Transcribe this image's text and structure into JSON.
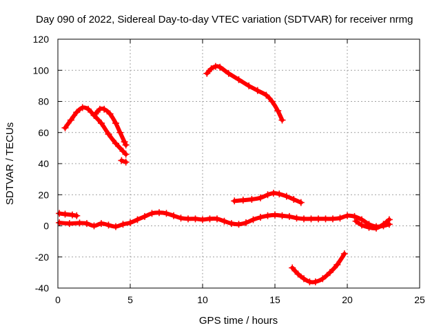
{
  "chart_data": {
    "type": "scatter",
    "title": "Day 090 of 2022, Sidereal Day-to-day VTEC variation (SDTVAR) for receiver nrmg",
    "xlabel": "GPS time / hours",
    "ylabel": "SDTVAR / TECUs",
    "xlim": [
      0,
      25
    ],
    "ylim": [
      -40,
      120
    ],
    "xticks": [
      0,
      5,
      10,
      15,
      20,
      25
    ],
    "yticks": [
      -40,
      -20,
      0,
      20,
      40,
      60,
      80,
      100,
      120
    ],
    "grid": true,
    "color": "#ff0000",
    "series": [
      {
        "name": "arc-1",
        "points": [
          [
            0.5,
            63
          ],
          [
            0.9,
            68
          ],
          [
            1.3,
            73
          ],
          [
            1.7,
            76
          ],
          [
            2.1,
            75
          ],
          [
            2.5,
            71
          ],
          [
            3.0,
            66
          ],
          [
            3.5,
            59
          ],
          [
            4.0,
            53
          ],
          [
            4.5,
            48
          ],
          [
            4.7,
            46
          ]
        ]
      },
      {
        "name": "arc-2",
        "points": [
          [
            2.6,
            72
          ],
          [
            2.9,
            75
          ],
          [
            3.2,
            75
          ],
          [
            3.6,
            72
          ],
          [
            4.0,
            66
          ],
          [
            4.3,
            60
          ],
          [
            4.6,
            54
          ],
          [
            4.7,
            52
          ]
        ]
      },
      {
        "name": "arc-3",
        "points": [
          [
            4.4,
            42
          ],
          [
            4.7,
            41
          ]
        ]
      },
      {
        "name": "arc-4",
        "points": [
          [
            10.3,
            98
          ],
          [
            10.6,
            101
          ],
          [
            10.9,
            102.5
          ],
          [
            11.2,
            102
          ],
          [
            11.8,
            98
          ],
          [
            12.5,
            94
          ],
          [
            13.2,
            90
          ],
          [
            13.8,
            87
          ],
          [
            14.4,
            84
          ],
          [
            14.8,
            80
          ],
          [
            15.2,
            74
          ],
          [
            15.5,
            68
          ]
        ]
      },
      {
        "name": "arc-5",
        "points": [
          [
            12.2,
            16
          ],
          [
            12.8,
            16.5
          ],
          [
            13.4,
            17
          ],
          [
            14.0,
            18
          ],
          [
            14.5,
            20
          ],
          [
            14.9,
            21
          ],
          [
            15.3,
            20.5
          ],
          [
            15.8,
            19
          ],
          [
            16.3,
            17
          ],
          [
            16.8,
            15
          ]
        ]
      },
      {
        "name": "arc-6",
        "points": [
          [
            16.2,
            -27
          ],
          [
            16.6,
            -31
          ],
          [
            17.0,
            -34
          ],
          [
            17.4,
            -36
          ],
          [
            17.8,
            -36
          ],
          [
            18.3,
            -34
          ],
          [
            18.8,
            -30
          ],
          [
            19.3,
            -25
          ],
          [
            19.8,
            -18
          ]
        ]
      },
      {
        "name": "baseline-a",
        "points": [
          [
            0.1,
            8
          ],
          [
            0.5,
            7.5
          ],
          [
            1.0,
            7
          ],
          [
            1.3,
            6.5
          ]
        ]
      },
      {
        "name": "baseline-b",
        "points": [
          [
            0.1,
            2
          ],
          [
            0.8,
            1.5
          ],
          [
            1.5,
            1.8
          ],
          [
            2.0,
            1.5
          ],
          [
            2.5,
            0
          ],
          [
            3.0,
            1.5
          ],
          [
            3.5,
            0.5
          ],
          [
            4.0,
            -0.5
          ],
          [
            4.5,
            1
          ],
          [
            5.0,
            2
          ],
          [
            5.5,
            4
          ],
          [
            6.0,
            6
          ],
          [
            6.5,
            8
          ],
          [
            7.0,
            8.5
          ],
          [
            7.5,
            8
          ],
          [
            8.0,
            6.5
          ],
          [
            8.5,
            5
          ],
          [
            9.0,
            4.5
          ],
          [
            9.5,
            4.5
          ],
          [
            10.0,
            4
          ],
          [
            10.5,
            4.5
          ],
          [
            11.0,
            4.5
          ],
          [
            11.5,
            3
          ],
          [
            12.0,
            1.5
          ],
          [
            12.5,
            1
          ],
          [
            13.0,
            2
          ],
          [
            13.5,
            4
          ],
          [
            14.0,
            5.5
          ],
          [
            14.5,
            6.5
          ],
          [
            15.0,
            7
          ],
          [
            15.5,
            6.5
          ],
          [
            16.0,
            6
          ],
          [
            16.5,
            5
          ],
          [
            17.0,
            4.5
          ],
          [
            17.5,
            4.5
          ],
          [
            18.0,
            4.5
          ],
          [
            18.5,
            4.5
          ],
          [
            19.0,
            4.5
          ],
          [
            19.5,
            5
          ],
          [
            20.0,
            6.5
          ],
          [
            20.5,
            6
          ],
          [
            21.0,
            4
          ],
          [
            21.5,
            1
          ],
          [
            22.0,
            -0.5
          ],
          [
            22.5,
            0
          ],
          [
            22.9,
            1
          ]
        ]
      },
      {
        "name": "baseline-c",
        "points": [
          [
            20.6,
            3
          ],
          [
            21.0,
            0.5
          ],
          [
            21.5,
            -1
          ],
          [
            22.0,
            -1.5
          ],
          [
            22.5,
            1
          ],
          [
            22.9,
            4
          ]
        ]
      }
    ]
  }
}
